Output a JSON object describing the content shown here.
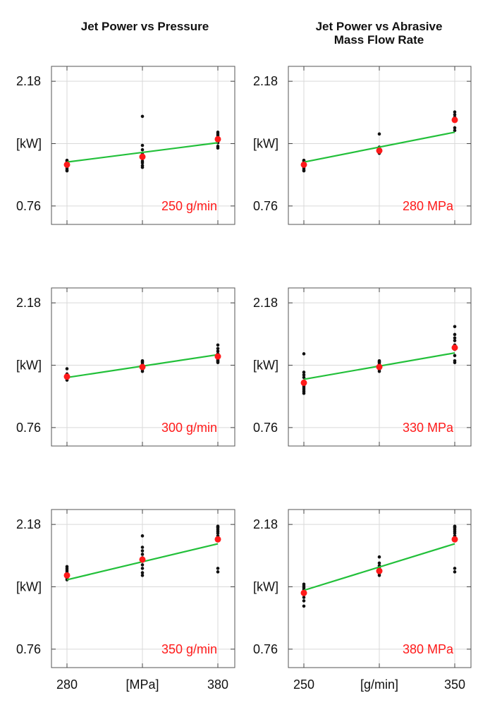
{
  "titles": {
    "left": "Jet Power vs Pressure",
    "right_line1": "Jet Power vs Abrasive",
    "right_line2": "Mass Flow Rate"
  },
  "y_axis": {
    "top": "2.18",
    "mid": "[kW]",
    "bottom": "0.76"
  },
  "x_axis_left": {
    "ticks": [
      "280",
      "[MPa]",
      "380"
    ]
  },
  "x_axis_right": {
    "ticks": [
      "250",
      "[g/min]",
      "350"
    ]
  },
  "colors": {
    "fit": "#22c03a",
    "mean": "#ff1a1a",
    "points": "#111111",
    "grid": "#d9d9d9"
  },
  "chart_data": [
    {
      "type": "scatter",
      "panel": "row1-left",
      "label": "250 g/min",
      "x": [
        280,
        330,
        380
      ],
      "mean": [
        1.23,
        1.32,
        1.52
      ],
      "fit": [
        1.26,
        1.48
      ],
      "points": [
        [
          1.28,
          1.27,
          1.25,
          1.24,
          1.22,
          1.21,
          1.19,
          1.17,
          1.16
        ],
        [
          1.78,
          1.45,
          1.4,
          1.35,
          1.3,
          1.27,
          1.25,
          1.22,
          1.2
        ],
        [
          1.6,
          1.58,
          1.56,
          1.54,
          1.52,
          1.5,
          1.48,
          1.44,
          1.42
        ]
      ],
      "ylim": [
        0.55,
        2.35
      ],
      "ylabel": "[kW]"
    },
    {
      "type": "scatter",
      "panel": "row1-right",
      "label": "280 MPa",
      "x": [
        250,
        300,
        350
      ],
      "mean": [
        1.23,
        1.39,
        1.74
      ],
      "fit": [
        1.26,
        1.6
      ],
      "points": [
        [
          1.28,
          1.27,
          1.25,
          1.24,
          1.22,
          1.21,
          1.19,
          1.17,
          1.16
        ],
        [
          1.58,
          1.43,
          1.4,
          1.38,
          1.36
        ],
        [
          1.83,
          1.8,
          1.77,
          1.73,
          1.65,
          1.62
        ]
      ],
      "ylim": [
        0.55,
        2.35
      ],
      "ylabel": "[kW]"
    },
    {
      "type": "scatter",
      "panel": "row2-left",
      "label": "300 g/min",
      "x": [
        280,
        330,
        380
      ],
      "mean": [
        1.34,
        1.45,
        1.57
      ],
      "fit": [
        1.33,
        1.59
      ],
      "points": [
        [
          1.43,
          1.37,
          1.35,
          1.32,
          1.3
        ],
        [
          1.52,
          1.51,
          1.5,
          1.48,
          1.46,
          1.44,
          1.42,
          1.4
        ],
        [
          1.7,
          1.66,
          1.63,
          1.6,
          1.55,
          1.53,
          1.52,
          1.51,
          1.5
        ]
      ],
      "ylim": [
        0.55,
        2.35
      ],
      "ylabel": "[kW]"
    },
    {
      "type": "scatter",
      "panel": "row2-right",
      "label": "330 MPa",
      "x": [
        250,
        300,
        350
      ],
      "mean": [
        1.27,
        1.45,
        1.67
      ],
      "fit": [
        1.31,
        1.61
      ],
      "points": [
        [
          1.6,
          1.39,
          1.36,
          1.33,
          1.29,
          1.25,
          1.23,
          1.21,
          1.19,
          1.17,
          1.15
        ],
        [
          1.52,
          1.51,
          1.5,
          1.48,
          1.46,
          1.44,
          1.42,
          1.4
        ],
        [
          1.91,
          1.82,
          1.78,
          1.75,
          1.7,
          1.65,
          1.58,
          1.52,
          1.5
        ]
      ],
      "ylim": [
        0.55,
        2.35
      ],
      "ylabel": "[kW]"
    },
    {
      "type": "scatter",
      "panel": "row3-left",
      "label": "350 g/min",
      "x": [
        280,
        330,
        380
      ],
      "mean": [
        1.6,
        1.78,
        2.01
      ],
      "fit": [
        1.55,
        1.96
      ],
      "points": [
        [
          1.7,
          1.68,
          1.66,
          1.64,
          1.62,
          1.59,
          1.57,
          1.55
        ],
        [
          2.05,
          1.92,
          1.88,
          1.84,
          1.8,
          1.76,
          1.72,
          1.68,
          1.63,
          1.6
        ],
        [
          2.16,
          2.15,
          2.14,
          2.12,
          2.1,
          2.08,
          2.05,
          1.68,
          1.64
        ]
      ],
      "ylim": [
        0.55,
        2.35
      ],
      "ylabel": "[kW]"
    },
    {
      "type": "scatter",
      "panel": "row3-right",
      "label": "380 MPa",
      "x": [
        250,
        300,
        350
      ],
      "mean": [
        1.4,
        1.65,
        2.01
      ],
      "fit": [
        1.43,
        1.96
      ],
      "points": [
        [
          1.5,
          1.48,
          1.46,
          1.44,
          1.42,
          1.38,
          1.35,
          1.31,
          1.25
        ],
        [
          1.81,
          1.74,
          1.71,
          1.68,
          1.66,
          1.64,
          1.62,
          1.6
        ],
        [
          2.16,
          2.15,
          2.14,
          2.12,
          2.1,
          2.08,
          2.05,
          1.68,
          1.64
        ]
      ],
      "ylim": [
        0.55,
        2.35
      ],
      "ylabel": "[kW]"
    }
  ]
}
